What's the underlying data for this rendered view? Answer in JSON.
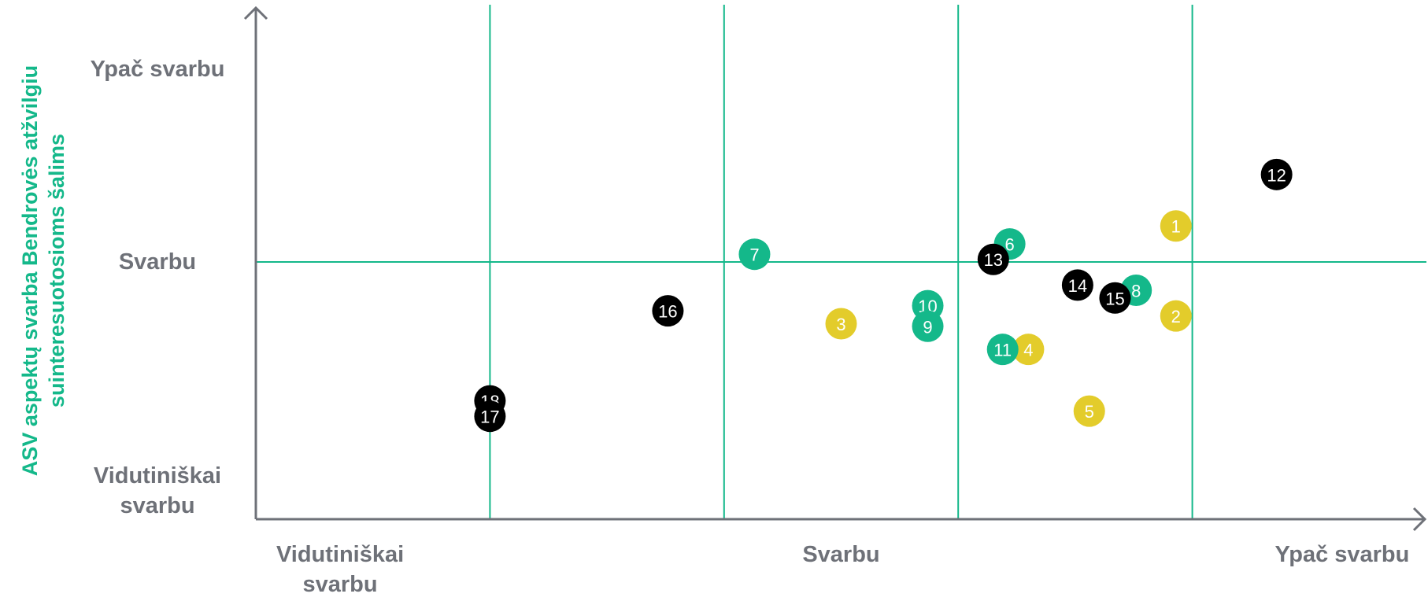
{
  "chart_data": {
    "type": "scatter",
    "ylabel": "ASV aspektų svarba Bendrovės atžvilgiu suinteresuotosioms šalims",
    "xlim": [
      0,
      5
    ],
    "ylim": [
      0,
      2
    ],
    "xticks": [
      {
        "value": 0.36,
        "label": "Vidutiniškai svarbu"
      },
      {
        "value": 2.5,
        "label": "Svarbu"
      },
      {
        "value": 4.64,
        "label": "Ypač svarbu"
      }
    ],
    "yticks": [
      {
        "value": 0.11,
        "label": "Vidutiniškai svarbu"
      },
      {
        "value": 1,
        "label": "Svarbu"
      },
      {
        "value": 1.75,
        "label": "Ypač svarbu"
      }
    ],
    "xgrid": [
      1,
      2,
      3,
      4
    ],
    "ygrid": [
      1
    ],
    "grid_color": "#14b88a",
    "series": [
      {
        "color": "#e3cc2b",
        "points": [
          {
            "label": "1",
            "x": 3.93,
            "y": 1.14
          },
          {
            "label": "2",
            "x": 3.93,
            "y": 0.79
          },
          {
            "label": "3",
            "x": 2.5,
            "y": 0.76
          },
          {
            "label": "4",
            "x": 3.3,
            "y": 0.66
          },
          {
            "label": "5",
            "x": 3.56,
            "y": 0.42
          }
        ]
      },
      {
        "color": "#14b88a",
        "points": [
          {
            "label": "6",
            "x": 3.22,
            "y": 1.07
          },
          {
            "label": "7",
            "x": 2.13,
            "y": 1.03
          },
          {
            "label": "8",
            "x": 3.76,
            "y": 0.89
          },
          {
            "label": "10",
            "x": 2.87,
            "y": 0.83
          },
          {
            "label": "9",
            "x": 2.87,
            "y": 0.75
          },
          {
            "label": "11",
            "x": 3.19,
            "y": 0.66
          }
        ]
      },
      {
        "color": "#000000",
        "points": [
          {
            "label": "12",
            "x": 4.36,
            "y": 1.34
          },
          {
            "label": "13",
            "x": 3.15,
            "y": 1.01
          },
          {
            "label": "14",
            "x": 3.51,
            "y": 0.91
          },
          {
            "label": "15",
            "x": 3.67,
            "y": 0.86
          },
          {
            "label": "16",
            "x": 1.76,
            "y": 0.81
          },
          {
            "label": "18",
            "x": 1.0,
            "y": 0.46
          },
          {
            "label": "17",
            "x": 1.0,
            "y": 0.4
          }
        ]
      }
    ]
  }
}
